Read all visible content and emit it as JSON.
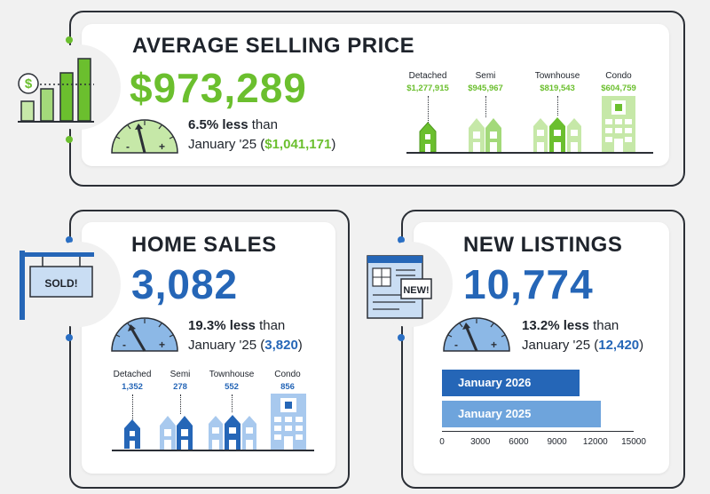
{
  "colors": {
    "green": "#6bbf2e",
    "green_light": "#c6e8a8",
    "blue": "#2566b7",
    "blue_light": "#8cb8e6",
    "dark": "#1e232b",
    "background": "#f1f1f1"
  },
  "average_price": {
    "title": "AVERAGE SELLING PRICE",
    "value": "$973,289",
    "pct_text": "6.5% less",
    "than": "than",
    "compare_prefix": "January '25 (",
    "compare_value": "$1,041,171",
    "compare_suffix": ")",
    "icon": "price-bar-chart-icon",
    "gauge_minus": "-",
    "gauge_plus": "+",
    "types": [
      {
        "label": "Detached",
        "value": "$1,277,915",
        "icon": "detached-house-icon"
      },
      {
        "label": "Semi",
        "value": "$945,967",
        "icon": "semi-house-icon"
      },
      {
        "label": "Townhouse",
        "value": "$819,543",
        "icon": "townhouse-icon"
      },
      {
        "label": "Condo",
        "value": "$604,759",
        "icon": "condo-icon"
      }
    ]
  },
  "home_sales": {
    "title": "HOME SALES",
    "value": "3,082",
    "pct_text": "19.3% less",
    "than": "than",
    "compare_prefix": "January '25 (",
    "compare_value": "3,820",
    "compare_suffix": ")",
    "sign_text": "SOLD!",
    "icon": "sold-sign-icon",
    "gauge_minus": "-",
    "gauge_plus": "+",
    "types": [
      {
        "label": "Detached",
        "value": "1,352",
        "icon": "detached-house-icon"
      },
      {
        "label": "Semi",
        "value": "278",
        "icon": "semi-house-icon"
      },
      {
        "label": "Townhouse",
        "value": "552",
        "icon": "townhouse-icon"
      },
      {
        "label": "Condo",
        "value": "856",
        "icon": "condo-icon"
      }
    ]
  },
  "new_listings": {
    "title": "NEW LISTINGS",
    "value": "10,774",
    "pct_text": "13.2% less",
    "than": "than",
    "compare_prefix": "January '25 (",
    "compare_value": "12,420",
    "compare_suffix": ")",
    "badge_text": "NEW!",
    "icon": "new-listing-document-icon",
    "gauge_minus": "-",
    "gauge_plus": "+"
  },
  "chart_data": {
    "type": "bar",
    "orientation": "horizontal",
    "categories": [
      "January 2026",
      "January 2025"
    ],
    "values": [
      10774,
      12420
    ],
    "xlim": [
      0,
      15000
    ],
    "xticks": [
      "0",
      "3000",
      "6000",
      "9000",
      "12000",
      "15000"
    ],
    "colors": [
      "#2566b7",
      "#6ea4dc"
    ]
  }
}
